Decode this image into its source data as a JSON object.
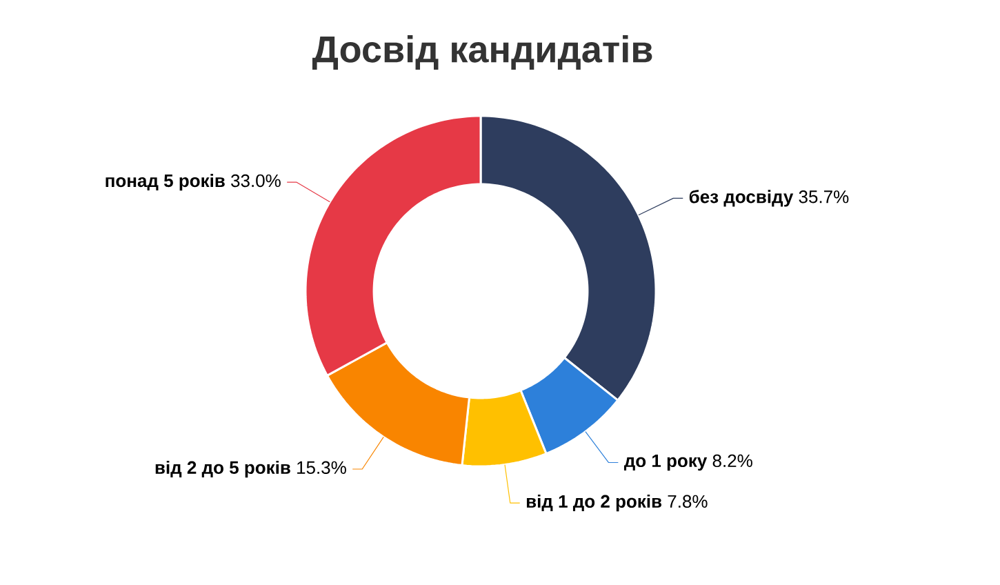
{
  "chart_data": {
    "type": "donut",
    "title": "Досвід кандидатів",
    "categories": [
      "без досвіду",
      "до 1 року",
      "від 1 до 2 років",
      "від 2 до 5 років",
      "понад 5 років"
    ],
    "values": [
      35.7,
      8.2,
      7.8,
      15.3,
      33.0
    ],
    "value_labels": [
      "35.7%",
      "8.2%",
      "7.8%",
      "15.3%",
      "33.0%"
    ],
    "colors": [
      "#2e3d5e",
      "#2d80da",
      "#ffc000",
      "#f98500",
      "#e63946"
    ]
  }
}
